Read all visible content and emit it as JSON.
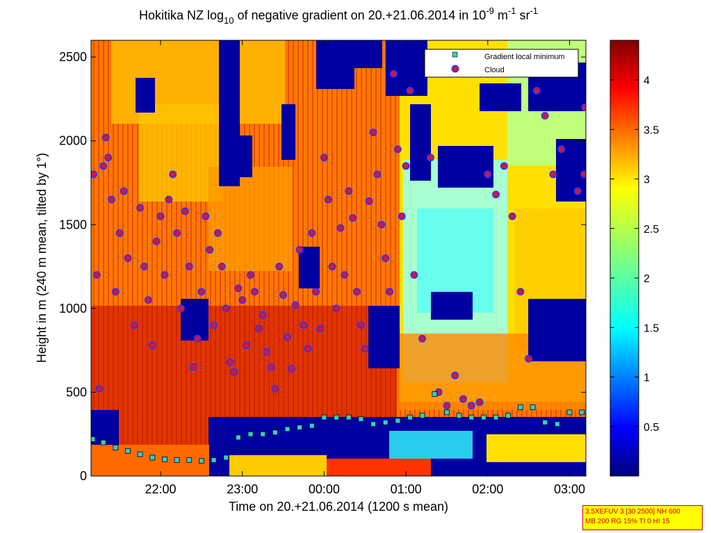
{
  "chart_data": {
    "type": "heatmap",
    "title": "Hokitika NZ log10 of negative gradient on 20.+21.06.2014 in 10-9 m-1 sr-1",
    "title_parts": {
      "prefix": "Hokitika NZ log",
      "sub": "10",
      "mid": " of negative gradient on 20.+21.06.2014 in 10",
      "sup1": "-9",
      "unit1": " m",
      "sup2": "-1",
      "unit2": " sr",
      "sup3": "-1"
    },
    "xlabel": "Time on 20.+21.06.2014 (1200 s mean)",
    "ylabel": "Height in m (240 m mean, tilted by 1°)",
    "x_ticks": [
      "22:00",
      "23:00",
      "00:00",
      "01:00",
      "02:00",
      "03:00"
    ],
    "x_tick_hours": [
      22,
      23,
      24,
      25,
      26,
      27
    ],
    "xlim_hours": [
      21.15,
      27.2
    ],
    "y_ticks": [
      0,
      500,
      1000,
      1500,
      2000,
      2500
    ],
    "ylim": [
      0,
      2600
    ],
    "colorbar": {
      "ticks": [
        0.5,
        1,
        1.5,
        2,
        2.5,
        3,
        3.5,
        4
      ],
      "tick_labels": [
        "0.5",
        "1",
        "1.5",
        "2",
        "2.5",
        "3",
        "3.5",
        "4"
      ],
      "range": [
        0,
        4.4
      ],
      "colormap": "jet"
    },
    "legend": {
      "placement": "top-right",
      "entries": [
        {
          "label": "Gradient local minimum",
          "color": "#33cccc",
          "marker": "square"
        },
        {
          "label": "Cloud",
          "color": "#ee1111",
          "marker": "circle"
        }
      ]
    },
    "series": [
      {
        "name": "Gradient local minimum",
        "x_hours": [
          21.17,
          21.3,
          21.45,
          21.6,
          21.75,
          21.9,
          22.05,
          22.2,
          22.35,
          22.5,
          22.65,
          22.8,
          22.95,
          23.1,
          23.25,
          23.4,
          23.55,
          23.7,
          23.85,
          24.0,
          24.15,
          24.3,
          24.45,
          24.6,
          24.75,
          24.9,
          25.05,
          25.2,
          25.35,
          25.5,
          25.65,
          25.8,
          25.95,
          26.1,
          26.25,
          26.4,
          26.55,
          26.7,
          26.85,
          27.0,
          27.15
        ],
        "y": [
          220,
          200,
          170,
          150,
          130,
          110,
          100,
          95,
          95,
          90,
          95,
          110,
          230,
          250,
          250,
          260,
          280,
          290,
          300,
          350,
          350,
          350,
          340,
          310,
          320,
          330,
          350,
          360,
          490,
          380,
          360,
          350,
          350,
          350,
          360,
          410,
          410,
          320,
          310,
          380,
          380
        ]
      },
      {
        "name": "Cloud",
        "x_hours": [
          21.18,
          21.22,
          21.25,
          21.3,
          21.33,
          21.36,
          21.4,
          21.45,
          21.5,
          21.55,
          21.6,
          21.68,
          21.75,
          21.8,
          21.85,
          21.9,
          21.95,
          22.0,
          22.05,
          22.1,
          22.15,
          22.2,
          22.25,
          22.3,
          22.35,
          22.4,
          22.45,
          22.5,
          22.55,
          22.6,
          22.65,
          22.7,
          22.75,
          22.8,
          22.85,
          22.9,
          22.95,
          23.0,
          23.05,
          23.1,
          23.15,
          23.2,
          23.25,
          23.3,
          23.35,
          23.4,
          23.45,
          23.5,
          23.55,
          23.6,
          23.65,
          23.7,
          23.75,
          23.8,
          23.85,
          23.9,
          23.95,
          24.0,
          24.05,
          24.1,
          24.15,
          24.2,
          24.25,
          24.3,
          24.35,
          24.4,
          24.45,
          24.5,
          24.55,
          24.6,
          24.65,
          24.7,
          24.75,
          24.8,
          24.85,
          24.9,
          24.95,
          25.0,
          25.05,
          25.1,
          25.2,
          25.3,
          25.4,
          25.5,
          25.6,
          25.7,
          25.8,
          25.9,
          26.0,
          26.1,
          26.2,
          26.3,
          26.4,
          26.5,
          26.6,
          26.7,
          26.8,
          26.9,
          27.0,
          27.1,
          27.18,
          27.19
        ],
        "y": [
          1800,
          1200,
          520,
          1850,
          2020,
          1900,
          1650,
          1100,
          1450,
          1700,
          1300,
          900,
          1600,
          1250,
          1050,
          780,
          1400,
          1550,
          1200,
          1650,
          1800,
          1450,
          1000,
          1580,
          1250,
          650,
          820,
          1100,
          1550,
          1350,
          900,
          1450,
          1250,
          1000,
          680,
          620,
          1120,
          1050,
          780,
          1200,
          1100,
          880,
          960,
          740,
          650,
          520,
          1250,
          1080,
          830,
          640,
          1020,
          1350,
          900,
          760,
          1450,
          1100,
          880,
          1900,
          1650,
          1250,
          1000,
          1480,
          1200,
          1700,
          1540,
          1100,
          900,
          760,
          1640,
          2050,
          1800,
          1500,
          1300,
          1100,
          2400,
          1950,
          1550,
          1850,
          2300,
          1200,
          820,
          1900,
          500,
          420,
          600,
          460,
          420,
          440,
          1800,
          1680,
          1850,
          1550,
          1100,
          700,
          2300,
          2150,
          1800,
          1950,
          2400,
          1700,
          1800,
          2200
        ]
      }
    ],
    "annotation_lines": [
      "3.5XEFUV 3 [30 2500] NH 600",
      "MB 200 RG 15% TI 0 HI 15"
    ]
  }
}
